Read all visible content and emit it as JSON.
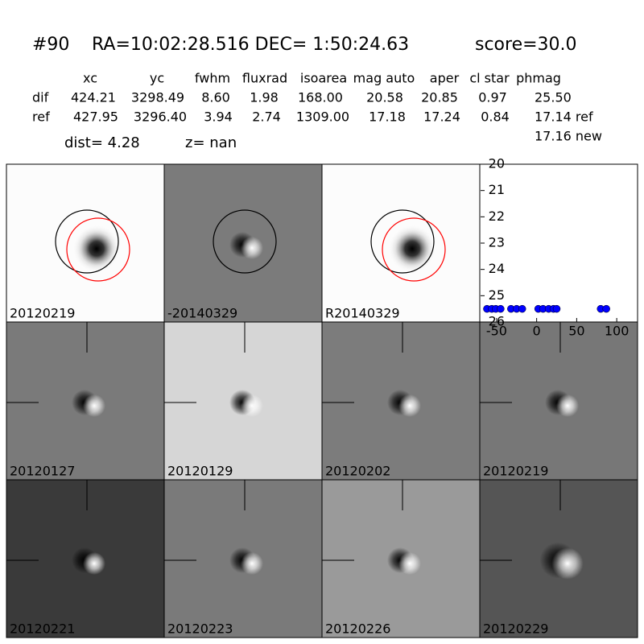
{
  "header": {
    "id": "#90",
    "coords": "RA=10:02:28.516 DEC= 1:50:24.63",
    "score": "score=30.0"
  },
  "table": {
    "columns": [
      "xc",
      "yc",
      "fwhm",
      "fluxrad",
      "isoarea",
      "mag auto",
      "aper",
      "cl star",
      "phmag"
    ],
    "rows": [
      [
        "dif",
        "424.21",
        "3298.49",
        "8.60",
        "1.98",
        "168.00",
        "20.58",
        "20.85",
        "0.97",
        "25.50"
      ],
      [
        "ref",
        "427.95",
        "3296.40",
        "3.94",
        "2.74",
        "1309.00",
        "17.18",
        "17.24",
        "0.84",
        "17.14 ref"
      ]
    ],
    "extra": "17.16 new"
  },
  "dist": "dist=  4.28",
  "z": "z=   nan",
  "panels": [
    "20120219",
    "-20140329",
    "R20140329",
    "20120127",
    "20120129",
    "20120202",
    "20120219",
    "20120221",
    "20120223",
    "20120226",
    "20120229"
  ],
  "chart_data": {
    "type": "scatter",
    "color": "#0000ff",
    "x": [
      -62,
      -56,
      -51,
      -45,
      -32,
      -25,
      -18,
      2,
      8,
      15,
      21,
      25,
      80,
      87
    ],
    "values": [
      25.5,
      25.5,
      25.5,
      25.5,
      25.5,
      25.5,
      25.5,
      25.5,
      25.5,
      25.5,
      25.5,
      25.5,
      25.5,
      25.5
    ],
    "xlim": [
      -70,
      125
    ],
    "xticks": [
      -50,
      0,
      50,
      100
    ],
    "ylim": [
      26,
      20
    ],
    "yticks": [
      20,
      21,
      22,
      23,
      24,
      25,
      26
    ]
  }
}
